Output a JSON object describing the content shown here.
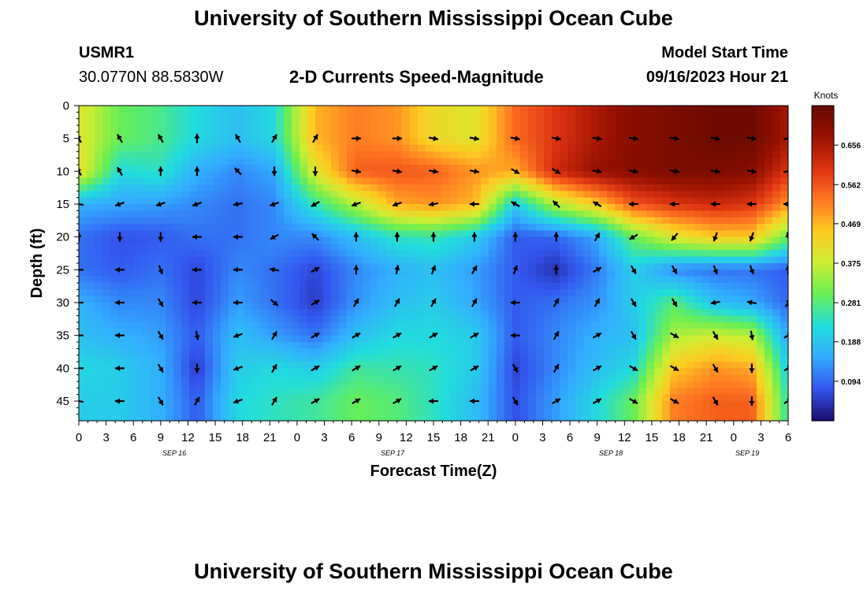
{
  "page": {
    "title_top": "University of Southern Mississippi Ocean Cube",
    "title_bottom": "University of Southern Mississippi Ocean Cube",
    "station_id": "USMR1",
    "station_coords": "30.0770N  88.5830W",
    "model_start_label": "Model Start Time",
    "model_start_value": "09/16/2023 Hour 21"
  },
  "chart_data": {
    "type": "heatmap",
    "title": "2-D Currents Speed-Magnitude",
    "xlabel": "Forecast Time(Z)",
    "ylabel": "Depth (ft)",
    "xlim": [
      0,
      78
    ],
    "ylim": [
      48,
      0
    ],
    "x_tick_labels": [
      "0",
      "3",
      "6",
      "9",
      "12",
      "15",
      "18",
      "21",
      "0",
      "3",
      "6",
      "9",
      "12",
      "15",
      "18",
      "21",
      "0",
      "3",
      "6",
      "9",
      "12",
      "15",
      "18",
      "21",
      "0",
      "3",
      "6"
    ],
    "y_ticks": [
      0,
      5,
      10,
      15,
      20,
      25,
      30,
      35,
      40,
      45
    ],
    "date_labels": [
      {
        "label": "SEP 16",
        "x": 10.5
      },
      {
        "label": "SEP 17",
        "x": 34.5
      },
      {
        "label": "SEP 18",
        "x": 58.5
      },
      {
        "label": "SEP 19",
        "x": 73.5
      }
    ],
    "colorbar": {
      "unit": "Knots",
      "min": 0.0,
      "max": 0.75,
      "ticks": [
        0.094,
        0.188,
        0.281,
        0.375,
        0.469,
        0.562,
        0.656
      ],
      "colors": [
        "#1a0a6b",
        "#3355ee",
        "#33aaff",
        "#22dddd",
        "#66ee55",
        "#ccee33",
        "#ffcc22",
        "#ff7722",
        "#dd3311",
        "#991100",
        "#660a00"
      ]
    },
    "arrow_times": [
      0,
      4.5,
      9,
      13,
      17.5,
      21.5,
      26,
      30.5,
      35,
      39,
      43.5,
      48,
      52.5,
      57,
      61,
      65.5,
      70,
      74,
      78
    ],
    "arrow_depths": [
      5,
      10,
      15,
      20,
      25,
      30,
      35,
      40,
      45
    ],
    "speed_grid": [
      [
        0.4,
        0.3,
        0.27,
        0.22,
        0.18,
        0.22,
        0.47,
        0.52,
        0.5,
        0.42,
        0.4,
        0.54,
        0.6,
        0.66,
        0.7,
        0.72,
        0.74,
        0.74,
        0.66
      ],
      [
        0.42,
        0.22,
        0.24,
        0.16,
        0.12,
        0.15,
        0.4,
        0.55,
        0.56,
        0.55,
        0.5,
        0.48,
        0.62,
        0.68,
        0.7,
        0.72,
        0.72,
        0.7,
        0.6
      ],
      [
        0.16,
        0.15,
        0.14,
        0.12,
        0.1,
        0.12,
        0.25,
        0.36,
        0.48,
        0.5,
        0.47,
        0.2,
        0.36,
        0.45,
        0.56,
        0.6,
        0.62,
        0.6,
        0.5
      ],
      [
        0.1,
        0.07,
        0.08,
        0.1,
        0.1,
        0.12,
        0.12,
        0.18,
        0.24,
        0.25,
        0.2,
        0.08,
        0.09,
        0.15,
        0.3,
        0.4,
        0.45,
        0.45,
        0.3
      ],
      [
        0.1,
        0.08,
        0.1,
        0.06,
        0.12,
        0.1,
        0.06,
        0.12,
        0.16,
        0.18,
        0.14,
        0.08,
        0.04,
        0.11,
        0.2,
        0.12,
        0.1,
        0.1,
        0.08
      ],
      [
        0.16,
        0.12,
        0.12,
        0.06,
        0.14,
        0.1,
        0.05,
        0.13,
        0.18,
        0.2,
        0.15,
        0.08,
        0.1,
        0.13,
        0.2,
        0.28,
        0.18,
        0.15,
        0.09
      ],
      [
        0.18,
        0.16,
        0.14,
        0.08,
        0.18,
        0.14,
        0.1,
        0.18,
        0.22,
        0.22,
        0.2,
        0.08,
        0.12,
        0.16,
        0.18,
        0.35,
        0.38,
        0.36,
        0.14
      ],
      [
        0.22,
        0.2,
        0.16,
        0.05,
        0.2,
        0.22,
        0.2,
        0.26,
        0.25,
        0.24,
        0.2,
        0.06,
        0.12,
        0.18,
        0.22,
        0.45,
        0.5,
        0.48,
        0.2
      ],
      [
        0.2,
        0.2,
        0.16,
        0.08,
        0.22,
        0.24,
        0.26,
        0.3,
        0.28,
        0.24,
        0.18,
        0.07,
        0.14,
        0.22,
        0.3,
        0.52,
        0.55,
        0.55,
        0.24
      ]
    ],
    "direction_grid": [
      [
        -30,
        -30,
        -30,
        0,
        -30,
        30,
        30,
        90,
        90,
        100,
        100,
        100,
        100,
        100,
        100,
        100,
        100,
        100,
        80
      ],
      [
        -30,
        -30,
        0,
        0,
        -45,
        180,
        180,
        100,
        100,
        100,
        100,
        120,
        120,
        100,
        100,
        100,
        100,
        100,
        80
      ],
      [
        -80,
        -110,
        -110,
        -110,
        -100,
        -110,
        -120,
        -110,
        -110,
        -100,
        -90,
        -60,
        -45,
        -60,
        -90,
        -90,
        -90,
        -90,
        -90
      ],
      [
        0,
        180,
        180,
        -90,
        -90,
        -120,
        -45,
        0,
        0,
        0,
        0,
        0,
        0,
        30,
        -120,
        -140,
        -160,
        -160,
        -10
      ],
      [
        -90,
        -90,
        160,
        -90,
        -90,
        -80,
        60,
        0,
        10,
        20,
        30,
        20,
        0,
        60,
        150,
        150,
        160,
        160,
        0
      ],
      [
        -90,
        -90,
        150,
        -90,
        -90,
        130,
        60,
        30,
        30,
        30,
        30,
        -90,
        30,
        30,
        150,
        150,
        -100,
        -80,
        30
      ],
      [
        -90,
        -90,
        150,
        170,
        -110,
        30,
        60,
        60,
        60,
        60,
        60,
        -90,
        30,
        60,
        150,
        120,
        150,
        170,
        60
      ],
      [
        -90,
        -90,
        150,
        180,
        -110,
        30,
        60,
        60,
        60,
        60,
        60,
        150,
        30,
        60,
        120,
        120,
        150,
        180,
        60
      ],
      [
        -80,
        -90,
        150,
        30,
        -110,
        30,
        60,
        60,
        60,
        -90,
        -90,
        150,
        60,
        60,
        120,
        120,
        150,
        180,
        60
      ]
    ]
  }
}
